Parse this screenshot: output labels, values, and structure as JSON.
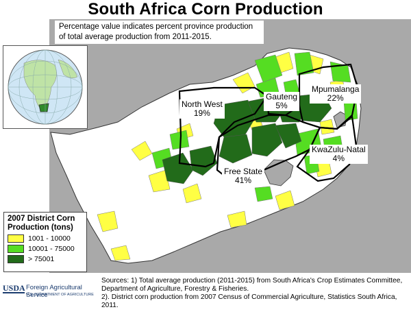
{
  "title": "South Africa Corn Production",
  "note": "Percentage value indicates percent province production of total average production from 2011-2015.",
  "provinces": [
    {
      "name": "North West",
      "pct": "19%"
    },
    {
      "name": "Gauteng",
      "pct": "5%"
    },
    {
      "name": "Mpumalanga",
      "pct": "22%"
    },
    {
      "name": "KwaZulu-Natal",
      "pct": "4%"
    },
    {
      "name": "Free State",
      "pct": "41%"
    }
  ],
  "legend": {
    "title": "2007 District Corn Production (tons)",
    "items": [
      {
        "label": "1001 - 10000",
        "color": "#ffff44"
      },
      {
        "label": "10001 - 75000",
        "color": "#55dd22"
      },
      {
        "label": "> 75001",
        "color": "#226b1a"
      }
    ]
  },
  "colors": {
    "background": "#a9a9a9",
    "land": "#ffffff",
    "low": "#ffff44",
    "mid": "#55dd22",
    "high": "#226b1a",
    "globe_ocean": "#cfe6f5",
    "globe_land": "#bfe3a6"
  },
  "sources": {
    "line1": "Sources: 1) Total  average production (2011-2015) from South Africa's Crop Estimates Committee, Department of Agriculture, Forestry & Fisheries.",
    "line2": "2). District corn production from 2007 Census of Commercial Agriculture, Statistics South Africa, 2011."
  },
  "logo": {
    "usda": "USDA",
    "agency": "Foreign Agricultural Service",
    "dept": "U.S. DEPARTMENT OF AGRICULTURE"
  }
}
